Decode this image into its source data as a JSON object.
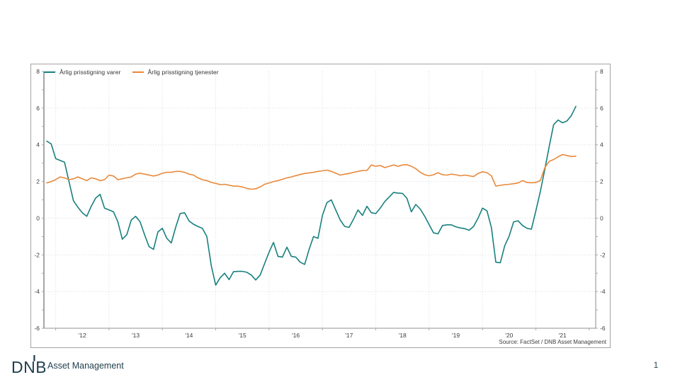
{
  "page": {
    "number": "1"
  },
  "footer": {
    "brand": "DNB",
    "unit": "Asset Management",
    "brand_color": "#1e3d4d"
  },
  "chart": {
    "source": "Source: FactSet / DNB Asset Management"
  },
  "chart_data": {
    "type": "line",
    "title": "",
    "xlabel": "",
    "ylabel": "",
    "ylim": [
      -6,
      8
    ],
    "yticks": [
      8,
      6,
      4,
      2,
      0,
      -2,
      -4,
      -6
    ],
    "xtick_labels": [
      "'12",
      "'13",
      "'14",
      "'15",
      "'16",
      "'17",
      "'18",
      "'19",
      "'20",
      "'21"
    ],
    "grid": "dotted",
    "legend_position": "top-left",
    "x_frequency": "monthly",
    "x": [
      "2011-11",
      "2011-12",
      "2012-01",
      "2012-02",
      "2012-03",
      "2012-04",
      "2012-05",
      "2012-06",
      "2012-07",
      "2012-08",
      "2012-09",
      "2012-10",
      "2012-11",
      "2012-12",
      "2013-01",
      "2013-02",
      "2013-03",
      "2013-04",
      "2013-05",
      "2013-06",
      "2013-07",
      "2013-08",
      "2013-09",
      "2013-10",
      "2013-11",
      "2013-12",
      "2014-01",
      "2014-02",
      "2014-03",
      "2014-04",
      "2014-05",
      "2014-06",
      "2014-07",
      "2014-08",
      "2014-09",
      "2014-10",
      "2014-11",
      "2014-12",
      "2015-01",
      "2015-02",
      "2015-03",
      "2015-04",
      "2015-05",
      "2015-06",
      "2015-07",
      "2015-08",
      "2015-09",
      "2015-10",
      "2015-11",
      "2015-12",
      "2016-01",
      "2016-02",
      "2016-03",
      "2016-04",
      "2016-05",
      "2016-06",
      "2016-07",
      "2016-08",
      "2016-09",
      "2016-10",
      "2016-11",
      "2016-12",
      "2017-01",
      "2017-02",
      "2017-03",
      "2017-04",
      "2017-05",
      "2017-06",
      "2017-07",
      "2017-08",
      "2017-09",
      "2017-10",
      "2017-11",
      "2017-12",
      "2018-01",
      "2018-02",
      "2018-03",
      "2018-04",
      "2018-05",
      "2018-06",
      "2018-07",
      "2018-08",
      "2018-09",
      "2018-10",
      "2018-11",
      "2018-12",
      "2019-01",
      "2019-02",
      "2019-03",
      "2019-04",
      "2019-05",
      "2019-06",
      "2019-07",
      "2019-08",
      "2019-09",
      "2019-10",
      "2019-11",
      "2019-12",
      "2020-01",
      "2020-02",
      "2020-03",
      "2020-04",
      "2020-05",
      "2020-06",
      "2020-07",
      "2020-08",
      "2020-09",
      "2020-10",
      "2020-11",
      "2020-12",
      "2021-01",
      "2021-02",
      "2021-03",
      "2021-04",
      "2021-05",
      "2021-06",
      "2021-07",
      "2021-08",
      "2021-09",
      "2021-10"
    ],
    "series": [
      {
        "name": "Årlig prisstigning varer",
        "color": "#17807e",
        "values": [
          4.2,
          4.05,
          3.25,
          3.15,
          3.05,
          2.0,
          0.95,
          0.6,
          0.3,
          0.1,
          0.65,
          1.1,
          1.3,
          0.55,
          0.45,
          0.35,
          -0.2,
          -1.15,
          -0.9,
          -0.1,
          0.1,
          -0.2,
          -0.9,
          -1.55,
          -1.7,
          -0.75,
          -0.55,
          -1.1,
          -1.35,
          -0.5,
          0.25,
          0.3,
          -0.15,
          -0.33,
          -0.45,
          -0.55,
          -1.0,
          -2.6,
          -3.65,
          -3.25,
          -3.0,
          -3.35,
          -2.92,
          -2.9,
          -2.9,
          -2.95,
          -3.1,
          -3.37,
          -3.1,
          -2.47,
          -1.85,
          -1.32,
          -2.08,
          -2.12,
          -1.58,
          -2.08,
          -2.12,
          -2.4,
          -2.52,
          -1.7,
          -1.0,
          -1.1,
          0.15,
          0.85,
          1.0,
          0.45,
          -0.1,
          -0.45,
          -0.5,
          -0.05,
          0.45,
          0.15,
          0.65,
          0.3,
          0.25,
          0.55,
          0.9,
          1.15,
          1.4,
          1.37,
          1.35,
          1.08,
          0.35,
          0.75,
          0.5,
          0.1,
          -0.35,
          -0.8,
          -0.85,
          -0.4,
          -0.36,
          -0.36,
          -0.47,
          -0.53,
          -0.57,
          -0.66,
          -0.45,
          0.0,
          0.55,
          0.4,
          -0.5,
          -2.4,
          -2.43,
          -1.5,
          -0.98,
          -0.2,
          -0.14,
          -0.4,
          -0.55,
          -0.6,
          0.4,
          1.45,
          2.65,
          3.9,
          5.1,
          5.35,
          5.2,
          5.3,
          5.6,
          6.1
        ]
      },
      {
        "name": "Årlig prisstigning tjenester",
        "color": "#e8893b",
        "values": [
          1.92,
          2.0,
          2.1,
          2.25,
          2.2,
          2.1,
          2.15,
          2.25,
          2.15,
          2.05,
          2.2,
          2.15,
          2.05,
          2.1,
          2.35,
          2.3,
          2.1,
          2.15,
          2.2,
          2.25,
          2.4,
          2.45,
          2.4,
          2.35,
          2.3,
          2.35,
          2.45,
          2.5,
          2.5,
          2.55,
          2.55,
          2.5,
          2.4,
          2.35,
          2.2,
          2.1,
          2.05,
          1.95,
          1.9,
          1.83,
          1.85,
          1.8,
          1.75,
          1.75,
          1.7,
          1.62,
          1.58,
          1.6,
          1.7,
          1.85,
          1.92,
          2.0,
          2.05,
          2.12,
          2.2,
          2.25,
          2.32,
          2.38,
          2.44,
          2.47,
          2.5,
          2.55,
          2.58,
          2.62,
          2.55,
          2.45,
          2.35,
          2.4,
          2.44,
          2.5,
          2.55,
          2.6,
          2.6,
          2.9,
          2.83,
          2.87,
          2.76,
          2.83,
          2.9,
          2.83,
          2.9,
          2.92,
          2.83,
          2.7,
          2.5,
          2.37,
          2.31,
          2.37,
          2.48,
          2.37,
          2.35,
          2.4,
          2.37,
          2.31,
          2.35,
          2.31,
          2.27,
          2.44,
          2.53,
          2.48,
          2.31,
          1.75,
          1.79,
          1.83,
          1.85,
          1.88,
          1.92,
          2.05,
          1.95,
          1.93,
          1.95,
          2.05,
          2.75,
          3.1,
          3.2,
          3.35,
          3.47,
          3.42,
          3.36,
          3.38
        ]
      }
    ]
  }
}
